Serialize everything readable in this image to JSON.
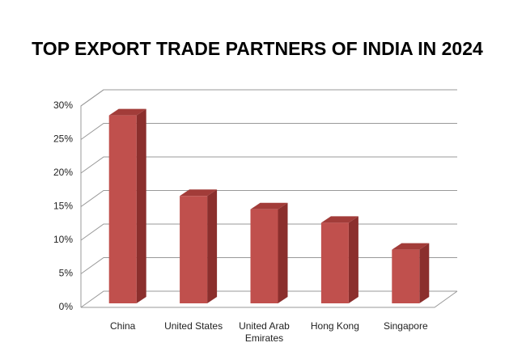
{
  "chart_data": {
    "type": "bar3d",
    "title": "TOP EXPORT TRADE PARTNERS OF INDIA IN 2024",
    "categories": [
      "China",
      "United States",
      "United Arab Emirates",
      "Hong Kong",
      "Singapore"
    ],
    "values": [
      28,
      16,
      14,
      12,
      8
    ],
    "color": "#c0504d",
    "ylim": [
      0,
      30
    ],
    "yticks": [
      {
        "value": 0,
        "label": "0%"
      },
      {
        "value": 5,
        "label": "5%"
      },
      {
        "value": 10,
        "label": "10%"
      },
      {
        "value": 15,
        "label": "15%"
      },
      {
        "value": 20,
        "label": "20%"
      },
      {
        "value": 25,
        "label": "25%"
      },
      {
        "value": 30,
        "label": "30%"
      }
    ],
    "grid": true
  }
}
